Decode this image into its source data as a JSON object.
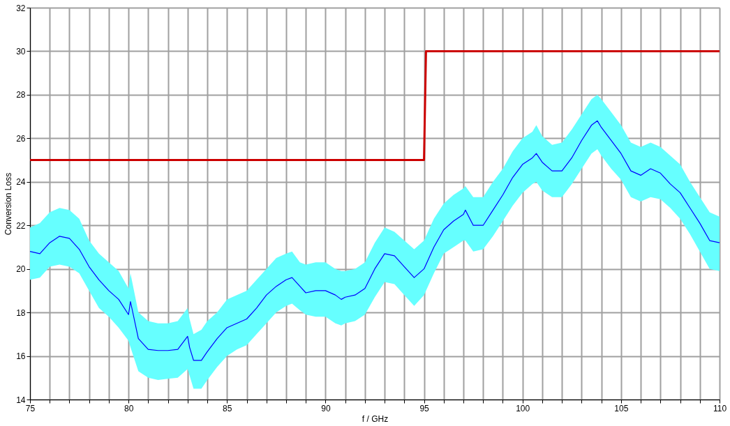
{
  "chart_data": {
    "type": "line",
    "xlabel": "f / GHz",
    "ylabel": "Conversion Loss",
    "xlim": [
      75,
      110
    ],
    "ylim": [
      14,
      32
    ],
    "xticks": [
      75,
      {
        "value": 76,
        "label": null
      },
      {
        "value": 77,
        "label": null
      },
      {
        "value": 78,
        "label": null
      },
      {
        "value": 79,
        "label": null
      },
      80,
      {
        "value": 81,
        "label": null
      },
      {
        "value": 82,
        "label": null
      },
      {
        "value": 83,
        "label": null
      },
      {
        "value": 84,
        "label": null
      },
      85,
      {
        "value": 86,
        "label": null
      },
      {
        "value": 87,
        "label": null
      },
      {
        "value": 88,
        "label": null
      },
      {
        "value": 89,
        "label": null
      },
      90,
      {
        "value": 91,
        "label": null
      },
      {
        "value": 92,
        "label": null
      },
      {
        "value": 93,
        "label": null
      },
      {
        "value": 94,
        "label": null
      },
      95,
      {
        "value": 96,
        "label": null
      },
      {
        "value": 97,
        "label": null
      },
      {
        "value": 98,
        "label": null
      },
      {
        "value": 99,
        "label": null
      },
      100,
      {
        "value": 101,
        "label": null
      },
      {
        "value": 102,
        "label": null
      },
      {
        "value": 103,
        "label": null
      },
      {
        "value": 104,
        "label": null
      },
      105,
      {
        "value": 106,
        "label": null
      },
      {
        "value": 107,
        "label": null
      },
      {
        "value": 108,
        "label": null
      },
      {
        "value": 109,
        "label": null
      },
      110
    ],
    "yticks": [
      14,
      16,
      18,
      20,
      22,
      24,
      26,
      28,
      30,
      32
    ],
    "grid": true,
    "marker": "none",
    "line_style": "solid",
    "series": [
      {
        "color": "#0000ff",
        "x": [
          75,
          75.5,
          76,
          76.5,
          77,
          77.5,
          78,
          78.5,
          79,
          79.5,
          80,
          80.1,
          80.5,
          81,
          81.5,
          82,
          82.5,
          83,
          83.1,
          83.3,
          83.7,
          84,
          84.5,
          85,
          85.5,
          86,
          86.5,
          87,
          87.5,
          88,
          88.3,
          88.7,
          89,
          89.5,
          90,
          90.5,
          90.8,
          91,
          91.5,
          92,
          92.5,
          93,
          93.5,
          94,
          94.5,
          95,
          95.5,
          96,
          96.5,
          97,
          97.1,
          97.5,
          98,
          98.5,
          99,
          99.5,
          100,
          100.5,
          100.7,
          101,
          101.5,
          102,
          102.5,
          103,
          103.5,
          103.8,
          104,
          104.5,
          105,
          105.5,
          106,
          106.5,
          107,
          107.5,
          108,
          108.5,
          109,
          109.5,
          110
        ],
        "values": [
          20.8,
          20.7,
          21.2,
          21.5,
          21.4,
          20.9,
          20.1,
          19.5,
          19.0,
          18.6,
          17.9,
          18.5,
          16.8,
          16.3,
          16.25,
          16.25,
          16.3,
          16.9,
          16.4,
          15.8,
          15.8,
          16.2,
          16.8,
          17.3,
          17.5,
          17.7,
          18.2,
          18.8,
          19.2,
          19.5,
          19.6,
          19.2,
          18.9,
          19.0,
          19.0,
          18.8,
          18.6,
          18.7,
          18.8,
          19.1,
          20.0,
          20.7,
          20.6,
          20.1,
          19.6,
          20.0,
          21.0,
          21.8,
          22.2,
          22.5,
          22.7,
          22.0,
          22.0,
          22.7,
          23.4,
          24.2,
          24.8,
          25.1,
          25.3,
          24.9,
          24.5,
          24.5,
          25.1,
          25.9,
          26.6,
          26.8,
          26.5,
          25.9,
          25.3,
          24.5,
          24.3,
          24.6,
          24.4,
          23.9,
          23.5,
          22.8,
          22.1,
          21.3,
          21.2
        ],
        "lower": [
          19.5,
          19.6,
          20.1,
          20.2,
          20.1,
          19.8,
          19.0,
          18.2,
          17.8,
          17.3,
          16.7,
          16.4,
          15.3,
          15.0,
          14.9,
          14.95,
          15.0,
          15.4,
          15.1,
          14.5,
          14.5,
          14.9,
          15.5,
          16.0,
          16.3,
          16.5,
          17.0,
          17.5,
          18.0,
          18.3,
          18.4,
          18.1,
          17.9,
          17.8,
          17.8,
          17.5,
          17.4,
          17.5,
          17.6,
          17.9,
          18.7,
          19.4,
          19.3,
          18.8,
          18.3,
          18.8,
          19.8,
          20.7,
          21.0,
          21.3,
          21.3,
          20.8,
          20.9,
          21.5,
          22.2,
          22.9,
          23.5,
          23.9,
          24.0,
          23.6,
          23.3,
          23.3,
          23.9,
          24.6,
          25.3,
          25.5,
          25.2,
          24.6,
          24.1,
          23.3,
          23.1,
          23.3,
          23.2,
          22.8,
          22.3,
          21.6,
          20.8,
          20.0,
          19.9
        ],
        "upper": [
          21.9,
          22.1,
          22.6,
          22.8,
          22.7,
          22.3,
          21.3,
          20.7,
          20.3,
          19.9,
          19.1,
          19.8,
          18.0,
          17.6,
          17.5,
          17.5,
          17.6,
          18.2,
          17.7,
          17.0,
          17.2,
          17.6,
          18.0,
          18.6,
          18.8,
          19.0,
          19.5,
          20.0,
          20.5,
          20.7,
          20.8,
          20.3,
          20.2,
          20.3,
          20.3,
          20.0,
          19.9,
          19.9,
          20.0,
          20.3,
          21.2,
          21.9,
          21.7,
          21.3,
          20.9,
          21.3,
          22.3,
          23.0,
          23.4,
          23.7,
          23.8,
          23.3,
          23.3,
          24.0,
          24.6,
          25.4,
          26.0,
          26.3,
          26.6,
          26.1,
          25.7,
          25.8,
          26.4,
          27.1,
          27.8,
          28.0,
          27.8,
          27.2,
          26.6,
          25.8,
          25.6,
          25.8,
          25.6,
          25.2,
          24.8,
          24.0,
          23.3,
          22.6,
          22.4
        ]
      },
      {
        "color": "#cc0000",
        "x": [
          75,
          95,
          95.1,
          110
        ],
        "values": [
          25,
          25,
          30,
          30
        ]
      }
    ]
  }
}
